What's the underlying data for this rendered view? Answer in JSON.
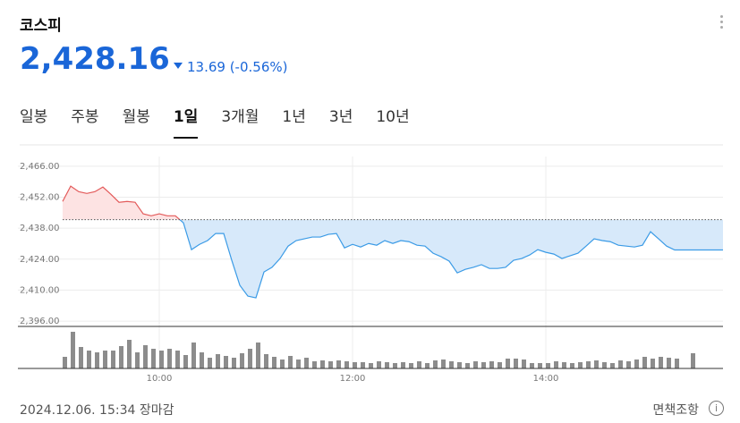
{
  "header": {
    "title": "코스피",
    "price": "2,428.16",
    "change": "13.69 (-0.56%)"
  },
  "tabs": [
    "일봉",
    "주봉",
    "월봉",
    "1일",
    "3개월",
    "1년",
    "3년",
    "10년"
  ],
  "chart_data": {
    "type": "line",
    "x": [
      0,
      5,
      10,
      15,
      20,
      25,
      30,
      35,
      40,
      45,
      50,
      55,
      60,
      65,
      70,
      75,
      80,
      85,
      90,
      95,
      100,
      105,
      110,
      115,
      120,
      125,
      130,
      135,
      140,
      145,
      150,
      155,
      160,
      165,
      170,
      175,
      180,
      185,
      190,
      195,
      200,
      205,
      210,
      215,
      220,
      225,
      230,
      235,
      240,
      245,
      250,
      255,
      260,
      265,
      270,
      275,
      280,
      285,
      290,
      295,
      300,
      305,
      310,
      315,
      320,
      325,
      330,
      335,
      340,
      345,
      350,
      355,
      360,
      365,
      370,
      375,
      380,
      385,
      390,
      395,
      400,
      405,
      410
    ],
    "series": [
      {
        "name": "코스피",
        "values": [
          2450.1,
          2457.0,
          2454.5,
          2453.7,
          2454.5,
          2456.6,
          2453.3,
          2449.7,
          2450.1,
          2449.7,
          2444.5,
          2443.6,
          2444.5,
          2443.6,
          2443.6,
          2440.4,
          2428.3,
          2430.7,
          2432.4,
          2435.6,
          2435.6,
          2423.5,
          2412.2,
          2407.3,
          2406.5,
          2418.2,
          2420.3,
          2424.3,
          2429.9,
          2432.4,
          2433.2,
          2434.0,
          2434.0,
          2435.2,
          2435.6,
          2429.1,
          2430.7,
          2429.5,
          2431.1,
          2430.3,
          2432.4,
          2431.1,
          2432.4,
          2431.9,
          2430.3,
          2429.9,
          2426.7,
          2425.1,
          2423.1,
          2417.8,
          2419.4,
          2420.3,
          2421.5,
          2419.8,
          2419.8,
          2420.3,
          2423.5,
          2424.3,
          2425.9,
          2428.3,
          2427.1,
          2426.3,
          2424.3,
          2425.5,
          2426.7,
          2429.9,
          2433.2,
          2432.4,
          2431.9,
          2430.3,
          2429.9,
          2429.5,
          2430.3,
          2436.4,
          2433.2,
          2429.9,
          2428.16,
          2428.16,
          2428.16,
          2428.16,
          2428.16,
          2428.16,
          2428.16
        ]
      }
    ],
    "reference_line": 2441.85,
    "up_color": "#e35a5a",
    "up_fill": "#fde3e3",
    "down_color": "#3b9be6",
    "down_fill": "#d7e9fa",
    "volume": {
      "color": "#8c8c8c",
      "ylim": [
        0,
        45
      ],
      "values": [
        13,
        41,
        24,
        20,
        18,
        20,
        20,
        25,
        32,
        18,
        26,
        22,
        20,
        22,
        20,
        15,
        29,
        18,
        12,
        16,
        14,
        12,
        17,
        22,
        29,
        16,
        13,
        10,
        14,
        10,
        12,
        8,
        9,
        8,
        9,
        8,
        7,
        7,
        6,
        8,
        7,
        6,
        7,
        6,
        8,
        6,
        9,
        10,
        8,
        7,
        6,
        8,
        7,
        8,
        7,
        11,
        11,
        10,
        6,
        6,
        6,
        8,
        7,
        6,
        7,
        8,
        9,
        7,
        6,
        9,
        8,
        10,
        13,
        11,
        13,
        12,
        11,
        null,
        17,
        null,
        null,
        null,
        null
      ]
    },
    "xlim": [
      0,
      410
    ],
    "xticks": [
      {
        "value": 60,
        "label": "10:00"
      },
      {
        "value": 180,
        "label": "12:00"
      },
      {
        "value": 300,
        "label": "14:00"
      }
    ],
    "ylim": [
      2393.6,
      2470.4
    ],
    "yticks": [
      {
        "value": 2466,
        "label": "2,466.00"
      },
      {
        "value": 2452,
        "label": "2,452.00"
      },
      {
        "value": 2438,
        "label": "2,438.00"
      },
      {
        "value": 2424,
        "label": "2,424.00"
      },
      {
        "value": 2410,
        "label": "2,410.00"
      },
      {
        "value": 2396,
        "label": "2,396.00"
      }
    ],
    "grid": true
  },
  "footer": {
    "timestamp": "2024.12.06. 15:34 장마감",
    "disclaimer": "면책조항"
  }
}
